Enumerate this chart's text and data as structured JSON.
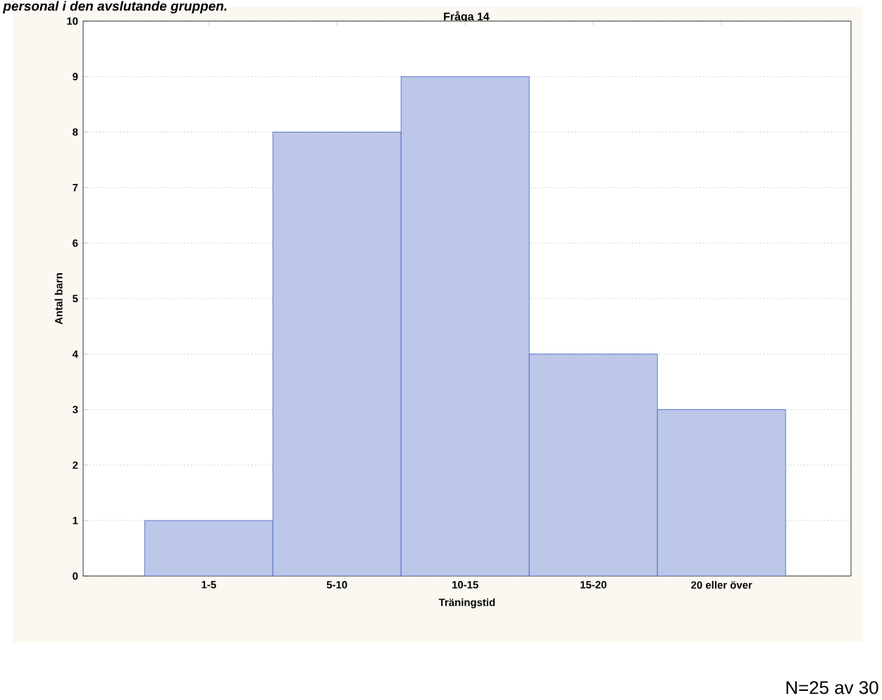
{
  "chart_data": {
    "type": "bar",
    "title": "Fråga 14",
    "xlabel": "Träningstid",
    "ylabel": "Antal barn",
    "categories": [
      "1-5",
      "5-10",
      "10-15",
      "15-20",
      "20 eller över"
    ],
    "values": [
      1,
      8,
      9,
      4,
      3
    ],
    "color": "#3f5fbf",
    "ylim": [
      0,
      10
    ],
    "yticks": [
      0,
      1,
      2,
      3,
      4,
      5,
      6,
      7,
      8,
      9,
      10
    ],
    "grid": "y",
    "annotations": [
      "personal i den avslutande gruppen.",
      "N=25 av 30"
    ]
  }
}
